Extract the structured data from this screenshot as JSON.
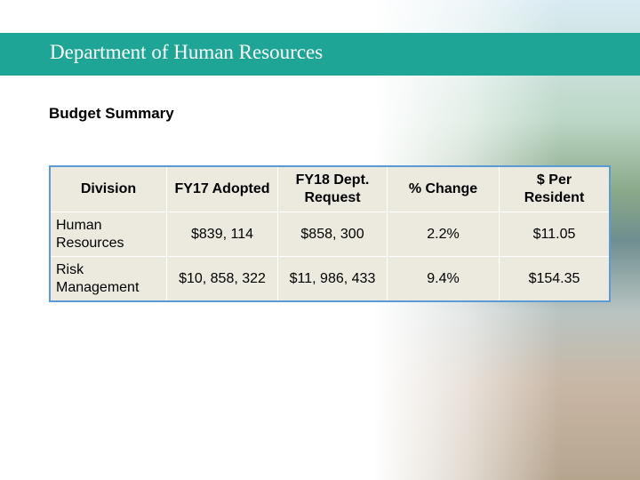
{
  "header": {
    "title": "Department of Human Resources"
  },
  "section_title": "Budget Summary",
  "table": {
    "columns": [
      "Division",
      "FY17 Adopted",
      "FY18 Dept. Request",
      "% Change",
      "$ Per Resident"
    ],
    "rows": [
      [
        "Human Resources",
        "$839, 114",
        "$858, 300",
        "2.2%",
        "$11.05"
      ],
      [
        "Risk Management",
        "$10, 858, 322",
        "$11, 986, 433",
        "9.4%",
        "$154.35"
      ]
    ]
  }
}
